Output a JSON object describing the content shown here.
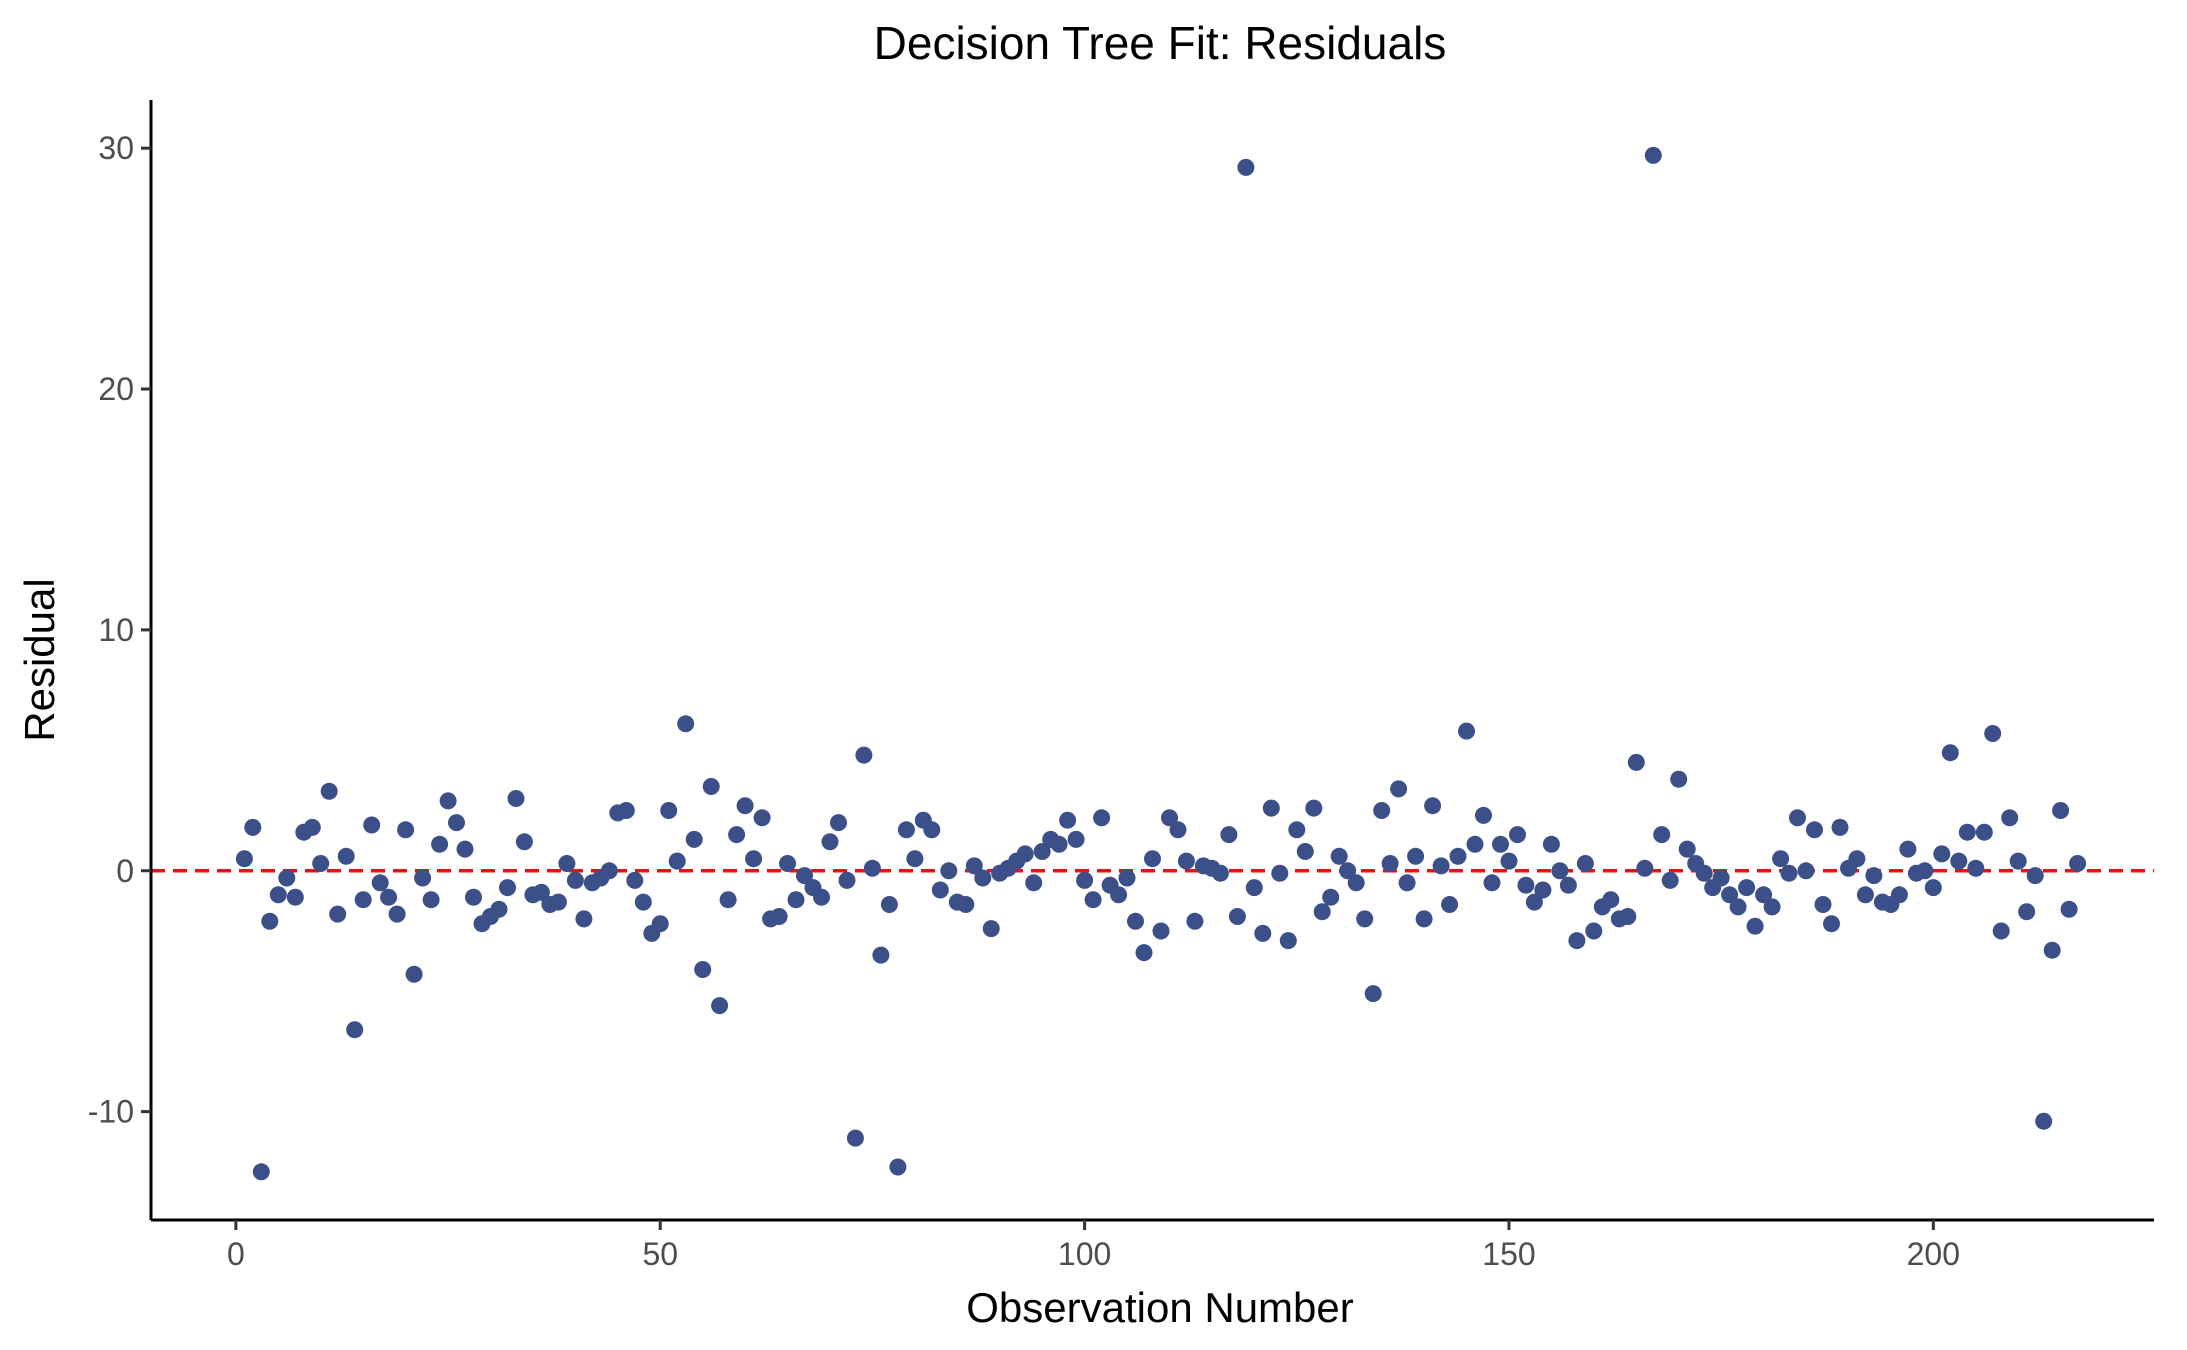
{
  "chart_data": {
    "type": "scatter",
    "title": "Decision Tree Fit: Residuals",
    "xlabel": "Observation Number",
    "ylabel": "Residual",
    "xlim": [
      -10,
      226
    ],
    "ylim": [
      -14.5,
      32
    ],
    "x_ticks": [
      0,
      50,
      100,
      150,
      200
    ],
    "x_tick_labels": [
      "0",
      "50",
      "100",
      "150",
      "200"
    ],
    "y_ticks": [
      -10,
      0,
      10,
      20,
      30
    ],
    "y_tick_labels": [
      "-10",
      "0",
      "10",
      "20",
      "30"
    ],
    "grid": false,
    "point_color": "#3b4f88",
    "reference_line": {
      "y": 0,
      "color": "#ee1111",
      "style": "dashed"
    },
    "series": [
      {
        "x": [
          1,
          2,
          3,
          4,
          5,
          6,
          7,
          8,
          9,
          10,
          11,
          12,
          13,
          14,
          15,
          16,
          17,
          18,
          19,
          20,
          21,
          22,
          23,
          24,
          25,
          26,
          27,
          28,
          29,
          30,
          31,
          32,
          33,
          34,
          35,
          36,
          37,
          38,
          39,
          40,
          41,
          42,
          43,
          44,
          45,
          46,
          47,
          48,
          49,
          50,
          51,
          52,
          53,
          54,
          55,
          56,
          57,
          58,
          59,
          60,
          61,
          62,
          63,
          64,
          65,
          66,
          67,
          68,
          69,
          70,
          71,
          72,
          73,
          74,
          75,
          76,
          77,
          78,
          79,
          80,
          81,
          82,
          83,
          84,
          85,
          86,
          87,
          88,
          89,
          90,
          91,
          92,
          93,
          94,
          95,
          96,
          97,
          98,
          99,
          100,
          101,
          102,
          103,
          104,
          105,
          106,
          107,
          108,
          109,
          110,
          111,
          112,
          113,
          114,
          115,
          116,
          117,
          118,
          119,
          120,
          121,
          122,
          123,
          124,
          125,
          126,
          127,
          128,
          129,
          130,
          131,
          132,
          133,
          134,
          135,
          136,
          137,
          138,
          139,
          140,
          141,
          142,
          143,
          144,
          145,
          146,
          147,
          148,
          149,
          150,
          151,
          152,
          153,
          154,
          155,
          156,
          157,
          158,
          159,
          160,
          161,
          162,
          163,
          164,
          165,
          166,
          167,
          168,
          169,
          170,
          171,
          172,
          173,
          174,
          175,
          176,
          177,
          178,
          179,
          180,
          181,
          182,
          183,
          184,
          185,
          186,
          187,
          188,
          189,
          190,
          191,
          192,
          193,
          194,
          195,
          196,
          197,
          198,
          199,
          200,
          201,
          202,
          203,
          204,
          205,
          206,
          207,
          208,
          209,
          210,
          211,
          212,
          213,
          214,
          215,
          216,
          217
        ],
        "y": [
          0.5,
          1.8,
          -12.5,
          -2.1,
          -1.0,
          -0.3,
          -1.1,
          1.6,
          1.8,
          0.3,
          3.3,
          -1.8,
          0.6,
          -6.6,
          -1.2,
          1.9,
          -0.5,
          -1.1,
          -1.8,
          1.7,
          -4.3,
          -0.3,
          -1.2,
          1.1,
          2.9,
          2.0,
          0.9,
          -1.1,
          -2.2,
          -1.9,
          -1.6,
          -0.7,
          3.0,
          1.2,
          -1.0,
          -0.9,
          -1.4,
          -1.3,
          0.3,
          -0.4,
          -2.0,
          -0.5,
          -0.3,
          0.0,
          2.4,
          2.5,
          -0.4,
          -1.3,
          -2.6,
          -2.2,
          2.5,
          0.4,
          6.1,
          1.3,
          -4.1,
          3.5,
          -5.6,
          -1.2,
          1.5,
          2.7,
          0.5,
          2.2,
          -2.0,
          -1.9,
          0.3,
          -1.2,
          -0.2,
          -0.7,
          -1.1,
          1.2,
          2.0,
          -0.4,
          -11.1,
          4.8,
          0.1,
          -3.5,
          -1.4,
          -12.3,
          1.7,
          0.5,
          2.1,
          1.7,
          -0.8,
          0.0,
          -1.3,
          -1.4,
          0.2,
          -0.3,
          -2.4,
          -0.1,
          0.1,
          0.4,
          0.7,
          -0.5,
          0.8,
          1.3,
          1.1,
          2.1,
          1.3,
          -0.4,
          -1.2,
          2.2,
          -0.6,
          -1.0,
          -0.3,
          -2.1,
          -3.4,
          0.5,
          -2.5,
          2.2,
          1.7,
          0.4,
          -2.1,
          0.2,
          0.1,
          -0.1,
          1.5,
          -1.9,
          29.2,
          -0.7,
          -2.6,
          2.6,
          -0.1,
          -2.9,
          1.7,
          0.8,
          2.6,
          -1.7,
          -1.1,
          0.6,
          0.0,
          -0.5,
          -2.0,
          -5.1,
          2.5,
          0.3,
          3.4,
          -0.5,
          0.6,
          -2.0,
          2.7,
          0.2,
          -1.4,
          0.6,
          5.8,
          1.1,
          2.3,
          -0.5,
          1.1,
          0.4,
          1.5,
          -0.6,
          -1.3,
          -0.8,
          1.1,
          0.0,
          -0.6,
          -2.9,
          0.3,
          -2.5,
          -1.5,
          -1.2,
          -2.0,
          -1.9,
          4.5,
          0.1,
          29.7,
          1.5,
          -0.4,
          3.8,
          0.9,
          0.3,
          -0.1,
          -0.7,
          -0.3,
          -1.0,
          -1.5,
          -0.7,
          -2.3,
          -1.0,
          -1.5,
          0.5,
          -0.1,
          2.2,
          0.0,
          1.7,
          -1.4,
          -2.2,
          1.8,
          0.1,
          0.5,
          -1.0,
          -0.2,
          -1.3,
          -1.4,
          -1.0,
          0.9,
          -0.1,
          0.0,
          -0.7,
          0.7,
          4.9,
          0.4,
          1.6,
          0.1,
          1.6,
          5.7,
          -2.5,
          2.2,
          0.4,
          -1.7,
          -0.2,
          -10.4,
          -3.3,
          2.5,
          -1.6,
          0.3
        ]
      }
    ]
  }
}
